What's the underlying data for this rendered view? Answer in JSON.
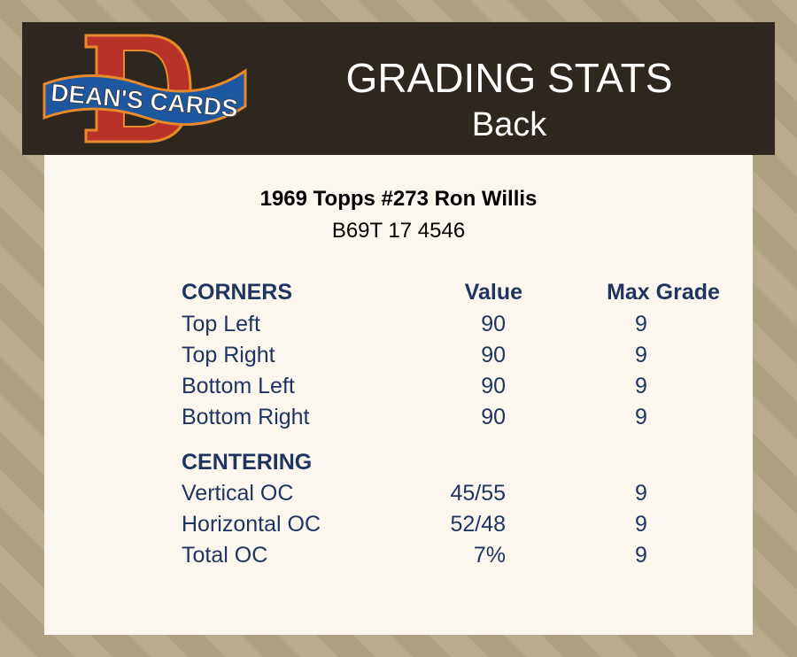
{
  "header": {
    "brand": "DEAN'S CARDS",
    "title": "GRADING STATS",
    "subtitle": "Back"
  },
  "card": {
    "name": "1969 Topps #273 Ron Willis",
    "code": "B69T 17 4546"
  },
  "columns": {
    "value": "Value",
    "max_grade": "Max Grade"
  },
  "sections": [
    {
      "title": "CORNERS",
      "rows": [
        {
          "label": "Top Left",
          "value": "90",
          "max": "9"
        },
        {
          "label": "Top Right",
          "value": "90",
          "max": "9"
        },
        {
          "label": "Bottom Left",
          "value": "90",
          "max": "9"
        },
        {
          "label": "Bottom Right",
          "value": "90",
          "max": "9"
        }
      ]
    },
    {
      "title": "CENTERING",
      "rows": [
        {
          "label": "Vertical OC",
          "value": "45/55",
          "max": "9"
        },
        {
          "label": "Horizontal OC",
          "value": "52/48",
          "max": "9"
        },
        {
          "label": "Total OC",
          "value": "7%",
          "max": "9"
        }
      ]
    }
  ]
}
